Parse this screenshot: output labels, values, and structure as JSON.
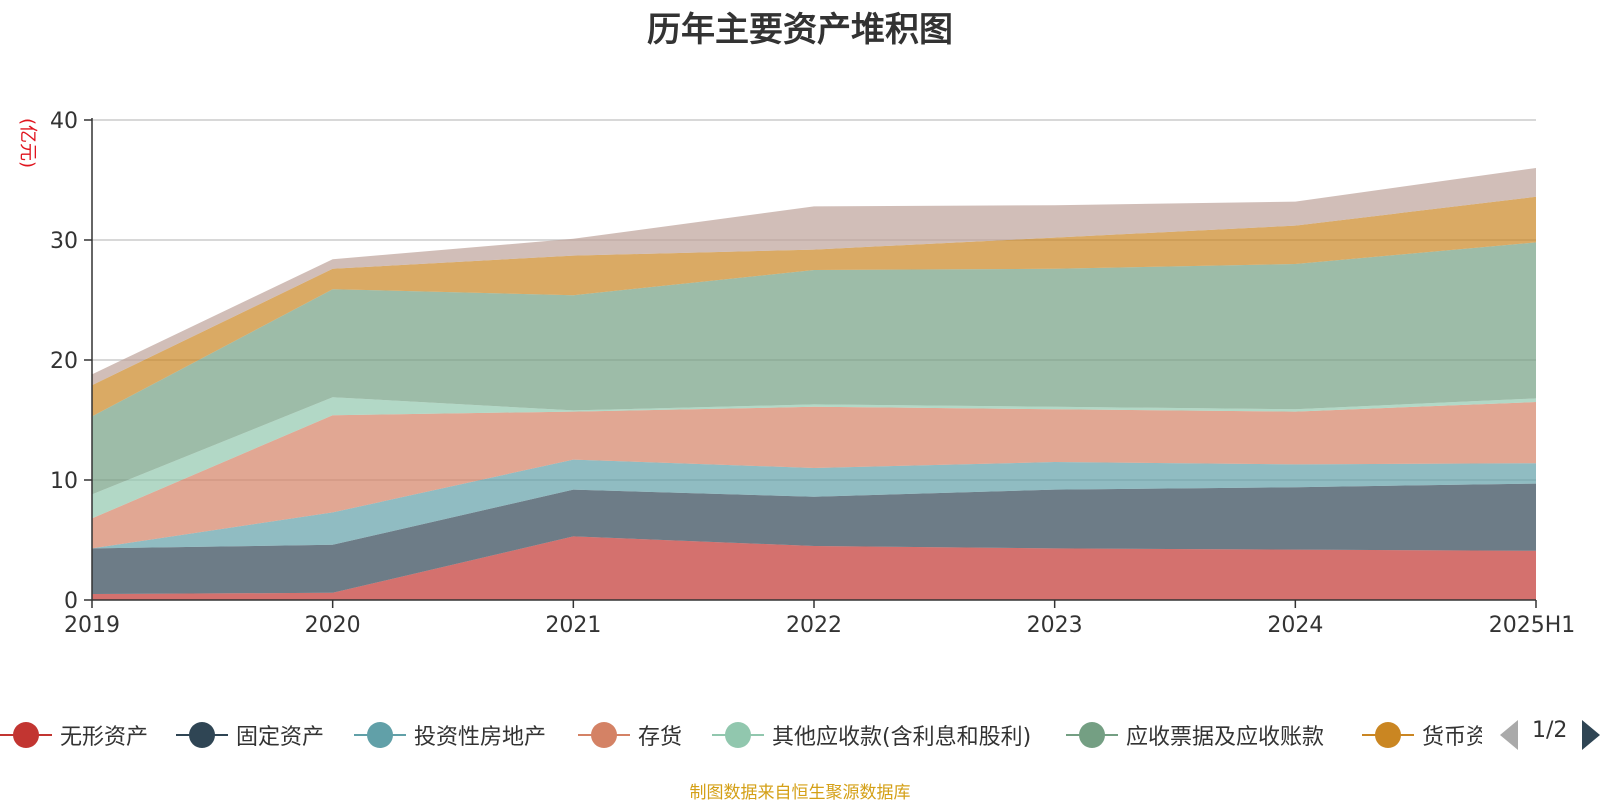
{
  "title": "历年主要资产堆积图",
  "y_unit": "(亿元)",
  "source": "制图数据来自恒生聚源数据库",
  "legend_pager": "1/2",
  "chart_data": {
    "type": "area",
    "stacked": true,
    "categories": [
      "2019",
      "2020",
      "2021",
      "2022",
      "2023",
      "2024",
      "2025H1"
    ],
    "ylim": [
      0,
      40
    ],
    "yticks": [
      0,
      10,
      20,
      30,
      40
    ],
    "grid": true,
    "legend_position": "bottom",
    "series": [
      {
        "name": "无形资产",
        "color": "#c23531",
        "values": [
          0.5,
          0.6,
          5.3,
          4.5,
          4.3,
          4.2,
          4.1
        ]
      },
      {
        "name": "固定资产",
        "color": "#2f4554",
        "values": [
          3.8,
          4.0,
          3.9,
          4.1,
          4.9,
          5.2,
          5.6
        ]
      },
      {
        "name": "投资性房地产",
        "color": "#61a0a8",
        "values": [
          0.0,
          2.7,
          2.5,
          2.4,
          2.3,
          1.9,
          1.7
        ]
      },
      {
        "name": "存货",
        "color": "#d48265",
        "values": [
          2.5,
          8.1,
          4.0,
          5.1,
          4.4,
          4.4,
          5.1
        ]
      },
      {
        "name": "其他应收款(含利息和股利)",
        "color": "#91c7ae",
        "values": [
          2.0,
          1.5,
          0.1,
          0.2,
          0.2,
          0.2,
          0.3
        ]
      },
      {
        "name": "应收票据及应收账款",
        "color": "#749f83",
        "values": [
          6.5,
          9.0,
          9.6,
          11.2,
          11.5,
          12.1,
          13.0
        ]
      },
      {
        "name": "货币资金",
        "label": "货币资",
        "color": "#ca8622",
        "values": [
          2.6,
          1.7,
          3.3,
          1.7,
          2.6,
          3.2,
          3.8
        ]
      },
      {
        "color": "#bda29a",
        "values": [
          0.9,
          0.8,
          1.4,
          3.6,
          2.7,
          2.0,
          2.4
        ]
      }
    ]
  }
}
